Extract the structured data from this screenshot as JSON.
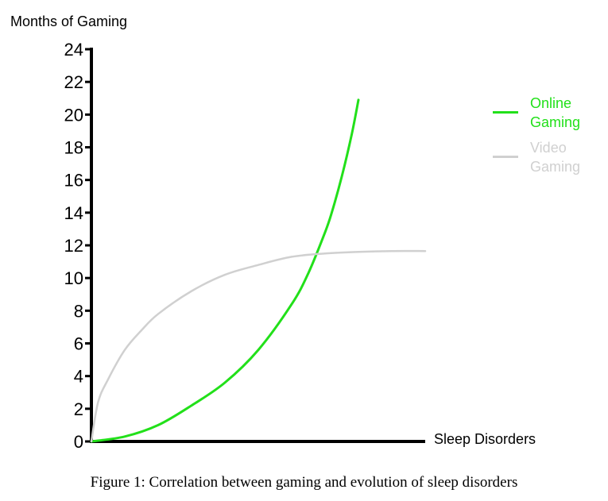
{
  "chart_data": {
    "type": "line",
    "ylabel": "Months of Gaming",
    "xlabel": "Sleep Disorders",
    "ylim": [
      0,
      24
    ],
    "yticks": [
      "0",
      "2",
      "4",
      "6",
      "8",
      "10",
      "12",
      "14",
      "16",
      "18",
      "20",
      "22",
      "24"
    ],
    "xlim": [
      0,
      1
    ],
    "grid": false,
    "legend_position": "top-right",
    "series": [
      {
        "name": "Online Gaming",
        "color": "#22e01a",
        "x": [
          0,
          0.1,
          0.2,
          0.3,
          0.4,
          0.5,
          0.6,
          0.65,
          0.7,
          0.72,
          0.75,
          0.78,
          0.8
        ],
        "y": [
          0,
          0.3,
          1.0,
          2.2,
          3.6,
          5.6,
          8.4,
          10.3,
          12.8,
          14.0,
          16.2,
          18.8,
          20.9
        ]
      },
      {
        "name": "Video Gaming",
        "color": "#d0d0d0",
        "x": [
          0,
          0.02,
          0.05,
          0.1,
          0.15,
          0.2,
          0.3,
          0.4,
          0.5,
          0.6,
          0.7,
          0.8,
          0.9,
          1.0
        ],
        "y": [
          0,
          2.4,
          3.8,
          5.6,
          6.8,
          7.8,
          9.2,
          10.2,
          10.8,
          11.3,
          11.5,
          11.6,
          11.65,
          11.65
        ]
      }
    ]
  },
  "caption": "Figure 1: Correlation between gaming and evolution of sleep disorders"
}
